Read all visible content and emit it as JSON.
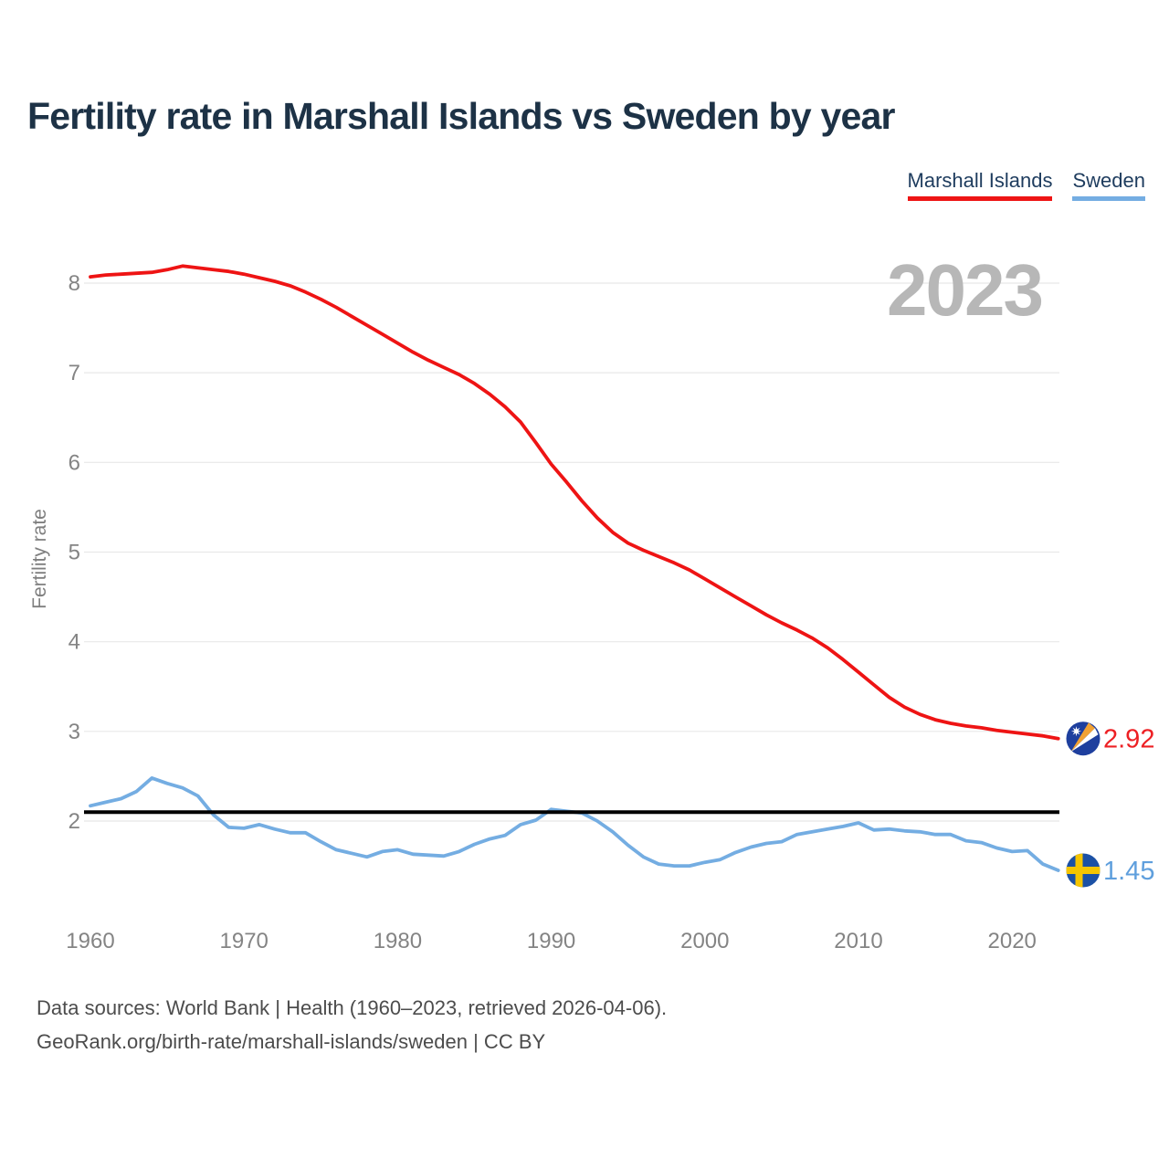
{
  "page": {
    "title": "Fertility rate in Marshall Islands vs Sweden by year",
    "watermark": "2023",
    "footer_line1": "Data sources: World Bank | Health (1960–2023, retrieved 2026-04-06).",
    "footer_line2": "GeoRank.org/birth-rate/marshall-islands/sweden | CC BY"
  },
  "legend": [
    {
      "label": "Marshall Islands",
      "color": "#ee1414"
    },
    {
      "label": "Sweden",
      "color": "#74ade2"
    }
  ],
  "chart_data": {
    "type": "line",
    "title": "Fertility rate in Marshall Islands vs Sweden by year",
    "ylabel": "Fertility rate",
    "xlabel": "",
    "grid": true,
    "legend_position": "top-right",
    "xlim": [
      1960,
      2023
    ],
    "ylim": [
      1.2,
      8.4
    ],
    "xticks": [
      1960,
      1970,
      1980,
      1990,
      2000,
      2010,
      2020
    ],
    "yticks": [
      2,
      3,
      4,
      5,
      6,
      7,
      8
    ],
    "reference_line": {
      "value": 2.1,
      "color": "#000000"
    },
    "x": [
      1960,
      1961,
      1962,
      1963,
      1964,
      1965,
      1966,
      1967,
      1968,
      1969,
      1970,
      1971,
      1972,
      1973,
      1974,
      1975,
      1976,
      1977,
      1978,
      1979,
      1980,
      1981,
      1982,
      1983,
      1984,
      1985,
      1986,
      1987,
      1988,
      1989,
      1990,
      1991,
      1992,
      1993,
      1994,
      1995,
      1996,
      1997,
      1998,
      1999,
      2000,
      2001,
      2002,
      2003,
      2004,
      2005,
      2006,
      2007,
      2008,
      2009,
      2010,
      2011,
      2012,
      2013,
      2014,
      2015,
      2016,
      2017,
      2018,
      2019,
      2020,
      2021,
      2022,
      2023
    ],
    "series": [
      {
        "name": "Marshall Islands",
        "color": "#ee1414",
        "label_color": "#ed2024",
        "end_label": "2.92",
        "flag": "marshall-islands",
        "values": [
          8.07,
          8.09,
          8.1,
          8.11,
          8.12,
          8.15,
          8.19,
          8.17,
          8.15,
          8.13,
          8.1,
          8.06,
          8.02,
          7.97,
          7.9,
          7.82,
          7.73,
          7.63,
          7.53,
          7.43,
          7.33,
          7.23,
          7.14,
          7.06,
          6.98,
          6.88,
          6.76,
          6.62,
          6.45,
          6.22,
          5.98,
          5.78,
          5.57,
          5.38,
          5.22,
          5.1,
          5.02,
          4.95,
          4.88,
          4.8,
          4.7,
          4.6,
          4.5,
          4.4,
          4.3,
          4.21,
          4.13,
          4.04,
          3.93,
          3.8,
          3.66,
          3.52,
          3.38,
          3.27,
          3.19,
          3.13,
          3.09,
          3.06,
          3.04,
          3.01,
          2.99,
          2.97,
          2.95,
          2.92
        ]
      },
      {
        "name": "Sweden",
        "color": "#74ade2",
        "label_color": "#5f9fdd",
        "end_label": "1.45",
        "flag": "sweden",
        "values": [
          2.17,
          2.21,
          2.25,
          2.33,
          2.48,
          2.42,
          2.37,
          2.28,
          2.07,
          1.93,
          1.92,
          1.96,
          1.91,
          1.87,
          1.87,
          1.77,
          1.68,
          1.64,
          1.6,
          1.66,
          1.68,
          1.63,
          1.62,
          1.61,
          1.66,
          1.74,
          1.8,
          1.84,
          1.96,
          2.01,
          2.13,
          2.11,
          2.09,
          2.0,
          1.88,
          1.73,
          1.6,
          1.52,
          1.5,
          1.5,
          1.54,
          1.57,
          1.65,
          1.71,
          1.75,
          1.77,
          1.85,
          1.88,
          1.91,
          1.94,
          1.98,
          1.9,
          1.91,
          1.89,
          1.88,
          1.85,
          1.85,
          1.78,
          1.76,
          1.7,
          1.66,
          1.67,
          1.52,
          1.45
        ]
      }
    ]
  }
}
